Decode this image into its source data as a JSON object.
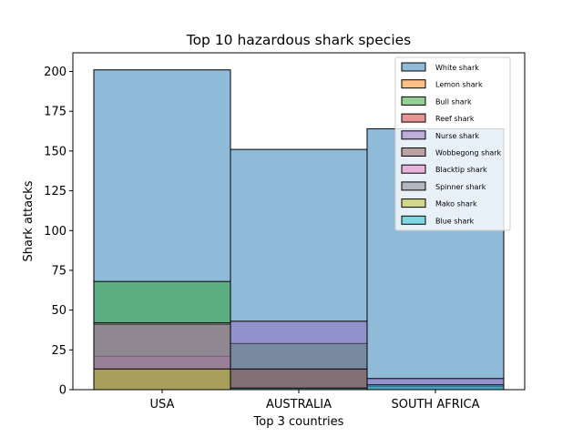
{
  "chart_data": {
    "type": "bar",
    "title": "Top 10 hazardous shark species",
    "xlabel": "Top 3 countries",
    "ylabel": "Shark attacks",
    "categories": [
      "USA",
      "AUSTRALIA",
      "SOUTH AFRICA"
    ],
    "ylim": [
      0,
      210
    ],
    "yticks": [
      0,
      25,
      50,
      75,
      100,
      125,
      150,
      175,
      200
    ],
    "grid": false,
    "legend_position": "top-right",
    "overlay": true,
    "bar_alpha": 0.5,
    "series": [
      {
        "name": "White shark",
        "color": "#1f77b4",
        "values": [
          201,
          151,
          164
        ]
      },
      {
        "name": "Lemon shark",
        "color": "#ff7f0e",
        "values": [
          0,
          0,
          0
        ]
      },
      {
        "name": "Bull shark",
        "color": "#2ca02c",
        "values": [
          68,
          29,
          2
        ]
      },
      {
        "name": "Reef shark",
        "color": "#d62728",
        "values": [
          0,
          0,
          0
        ]
      },
      {
        "name": "Nurse shark",
        "color": "#9467bd",
        "values": [
          21,
          43,
          7
        ]
      },
      {
        "name": "Wobbegong shark",
        "color": "#8c564b",
        "values": [
          0,
          13,
          0
        ]
      },
      {
        "name": "Blacktip shark",
        "color": "#e377c2",
        "values": [
          41,
          0,
          0
        ]
      },
      {
        "name": "Spinner shark",
        "color": "#7f7f7f",
        "values": [
          42,
          0,
          0
        ]
      },
      {
        "name": "Mako shark",
        "color": "#bcbd22",
        "values": [
          13,
          0,
          0
        ]
      },
      {
        "name": "Blue shark",
        "color": "#17becf",
        "values": [
          0,
          1,
          3
        ]
      }
    ]
  }
}
